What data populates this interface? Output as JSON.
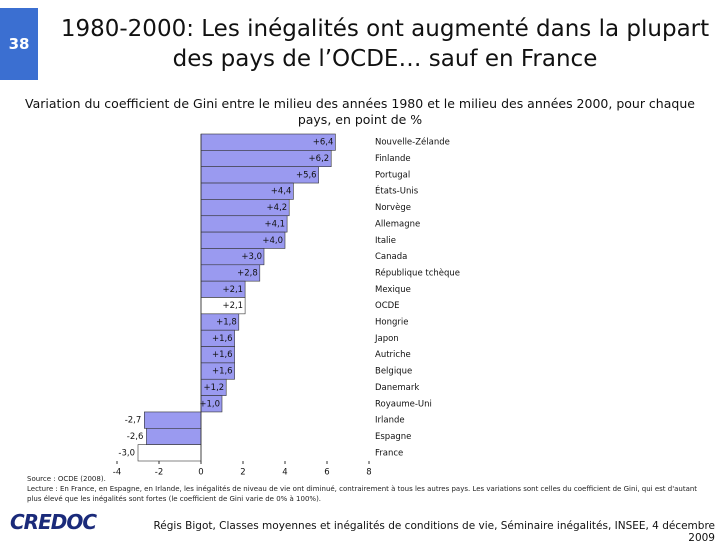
{
  "slide_number": "38",
  "title": "1980-2000: Les inégalités ont augmenté dans la plupart des pays de l’OCDE… sauf en France",
  "chart_data": {
    "type": "barh",
    "title": "Variation du coefficient de Gini entre le milieu des années 1980 et le milieu des années 2000, pour chaque pays, en point de %",
    "categories": [
      "Nouvelle-Zélande",
      "Finlande",
      "Portugal",
      "États-Unis",
      "Norvège",
      "Allemagne",
      "Italie",
      "Canada",
      "République tchèque",
      "Mexique",
      "OCDE",
      "Hongrie",
      "Japon",
      "Autriche",
      "Belgique",
      "Danemark",
      "Royaume-Uni",
      "Irlande",
      "Espagne",
      "France"
    ],
    "values": [
      6.4,
      6.2,
      5.6,
      4.4,
      4.2,
      4.1,
      4.0,
      3.0,
      2.8,
      2.1,
      2.1,
      1.8,
      1.6,
      1.6,
      1.6,
      1.2,
      1.0,
      -2.7,
      -2.6,
      -3.0
    ],
    "value_labels": [
      "+6,4",
      "+6,2",
      "+5,6",
      "+4,4",
      "+4,2",
      "+4,1",
      "+4,0",
      "+3,0",
      "+2,8",
      "+2,1",
      "+2,1",
      "+1,8",
      "+1,6",
      "+1,6",
      "+1,6",
      "+1,2",
      "+1,0",
      "-2,7",
      "-2,6",
      "-3,0"
    ],
    "color": "#9a9af0",
    "highlight_color": "#ffffff",
    "highlight": [
      "OCDE",
      "France"
    ],
    "xlim": [
      -4,
      8
    ],
    "xticks": [
      -4,
      -2,
      0,
      2,
      4,
      6,
      8
    ]
  },
  "source": "Source : OCDE (2008).",
  "note": "Lecture : En France, en Espagne, en Irlande, les inégalités de niveau de vie ont diminué, contrairement à tous les autres pays. Les variations sont celles du coefficient de Gini, qui est d'autant plus élevé que les inégalités sont fortes (le coefficient de Gini varie de 0% à 100%).",
  "footer": {
    "logo": "CREDOC",
    "text": "Régis Bigot, Classes moyennes et inégalités de conditions de vie, Séminaire inégalités, INSEE, 4 décembre 2009"
  }
}
